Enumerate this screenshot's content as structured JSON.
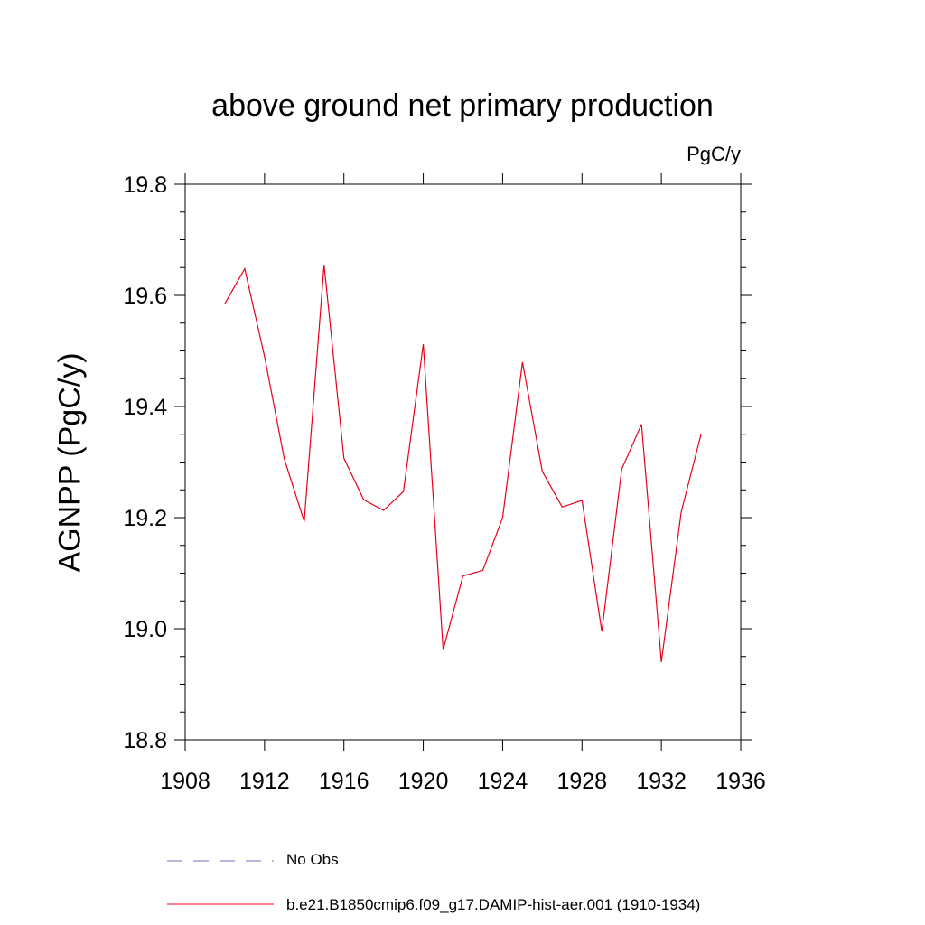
{
  "colors": {
    "series": "#e8001a",
    "obs": "#7a6ab8",
    "axis": "#000000"
  },
  "chart_data": {
    "type": "line",
    "title": "above ground net primary production",
    "units_label": "PgC/y",
    "ylabel": "AGNPP  (PgC/y)",
    "xlim": [
      1908,
      1936
    ],
    "ylim": [
      18.8,
      19.8
    ],
    "xticks": [
      1908,
      1912,
      1916,
      1920,
      1924,
      1928,
      1932,
      1936
    ],
    "xtick_labels": [
      "1908",
      "1912",
      "1916",
      "1920",
      "1924",
      "1928",
      "1932",
      "1936"
    ],
    "yticks": [
      18.8,
      19.0,
      19.2,
      19.4,
      19.6,
      19.8
    ],
    "ytick_labels": [
      "18.8",
      "19.0",
      "19.2",
      "19.4",
      "19.6",
      "19.8"
    ],
    "grid": false,
    "legend_position": "bottom",
    "series": [
      {
        "name": "b.e21.B1850cmip6.f09_g17.DAMIP-hist-aer.001 (1910-1934)",
        "style": "solid",
        "x": [
          1910,
          1911,
          1912,
          1913,
          1914,
          1915,
          1916,
          1917,
          1918,
          1919,
          1920,
          1921,
          1922,
          1923,
          1924,
          1925,
          1926,
          1927,
          1928,
          1929,
          1930,
          1931,
          1932,
          1933,
          1934
        ],
        "y": [
          19.585,
          19.648,
          19.49,
          19.305,
          19.193,
          19.655,
          19.307,
          19.232,
          19.213,
          19.247,
          19.512,
          18.962,
          19.095,
          19.105,
          19.2,
          19.48,
          19.283,
          19.219,
          19.231,
          18.995,
          19.287,
          19.368,
          18.94,
          19.21,
          19.35
        ]
      }
    ],
    "legend": [
      {
        "label": "No Obs",
        "style": "dashed"
      },
      {
        "label": "b.e21.B1850cmip6.f09_g17.DAMIP-hist-aer.001 (1910-1934)",
        "style": "solid"
      }
    ]
  }
}
